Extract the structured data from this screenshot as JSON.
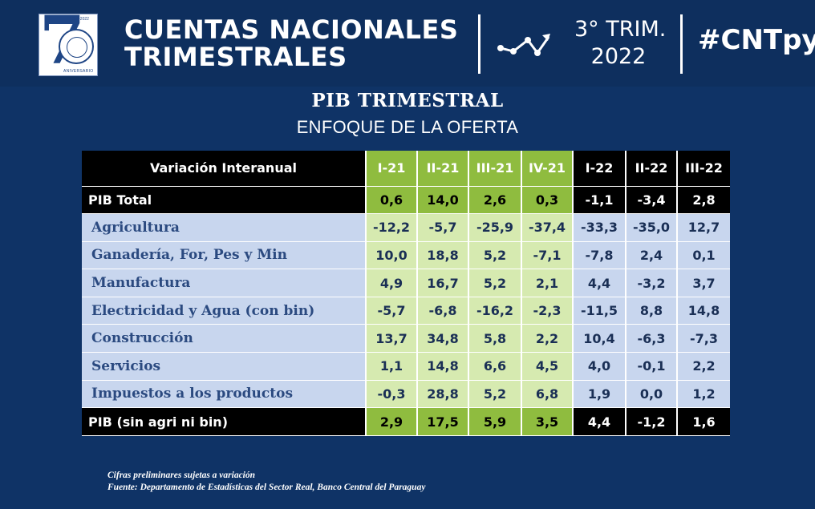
{
  "header": {
    "logo": {
      "years": "1952-2022",
      "anniversary": "ANIVERSARIO"
    },
    "title_line1": "CUENTAS NACIONALES",
    "title_line2": "TRIMESTRALES",
    "trend_icon": "trend-line-icon",
    "period_line1": "3° TRIM.",
    "period_line2": "2022",
    "hashtag": "#CNTpy"
  },
  "section": {
    "title": "PIB TRIMESTRAL",
    "subtitle": "ENFOQUE DE LA OFERTA"
  },
  "table": {
    "header_label": "Variación Interanual",
    "columns": [
      "I-21",
      "II-21",
      "III-21",
      "IV-21",
      "I-22",
      "II-22",
      "III-22"
    ],
    "total_row": {
      "label": "PIB Total",
      "values": [
        "0,6",
        "14,0",
        "2,6",
        "0,3",
        "-1,1",
        "-3,4",
        "2,8"
      ]
    },
    "rows": [
      {
        "label": "Agricultura",
        "values": [
          "-12,2",
          "-5,7",
          "-25,9",
          "-37,4",
          "-33,3",
          "-35,0",
          "12,7"
        ]
      },
      {
        "label": "Ganadería, For, Pes y Min",
        "values": [
          "10,0",
          "18,8",
          "5,2",
          "-7,1",
          "-7,8",
          "2,4",
          "0,1"
        ]
      },
      {
        "label": "Manufactura",
        "values": [
          "4,9",
          "16,7",
          "5,2",
          "2,1",
          "4,4",
          "-3,2",
          "3,7"
        ]
      },
      {
        "label": "Electricidad y Agua (con bin)",
        "values": [
          "-5,7",
          "-6,8",
          "-16,2",
          "-2,3",
          "-11,5",
          "8,8",
          "14,8"
        ]
      },
      {
        "label": "Construcción",
        "values": [
          "13,7",
          "34,8",
          "5,8",
          "2,2",
          "10,4",
          "-6,3",
          "-7,3"
        ]
      },
      {
        "label": "Servicios",
        "values": [
          "1,1",
          "14,8",
          "6,6",
          "4,5",
          "4,0",
          "-0,1",
          "2,2"
        ]
      },
      {
        "label": "Impuestos a los productos",
        "values": [
          "-0,3",
          "28,8",
          "5,2",
          "6,8",
          "1,9",
          "0,0",
          "1,2"
        ]
      }
    ],
    "bottom_row": {
      "label": "PIB (sin agri ni bin)",
      "values": [
        "2,9",
        "17,5",
        "5,9",
        "3,5",
        "4,4",
        "-1,2",
        "1,6"
      ]
    }
  },
  "footer": {
    "note": "Cifras preliminares sujetas a variación",
    "source": "Fuente: Departamento de Estadísticas del Sector Real, Banco Central del Paraguay"
  },
  "colors": {
    "background": "#0f3366",
    "green_header": "#8fbc3f",
    "green_light": "#d6eab0",
    "blue_light": "#c8d6ee",
    "black": "#000000"
  }
}
